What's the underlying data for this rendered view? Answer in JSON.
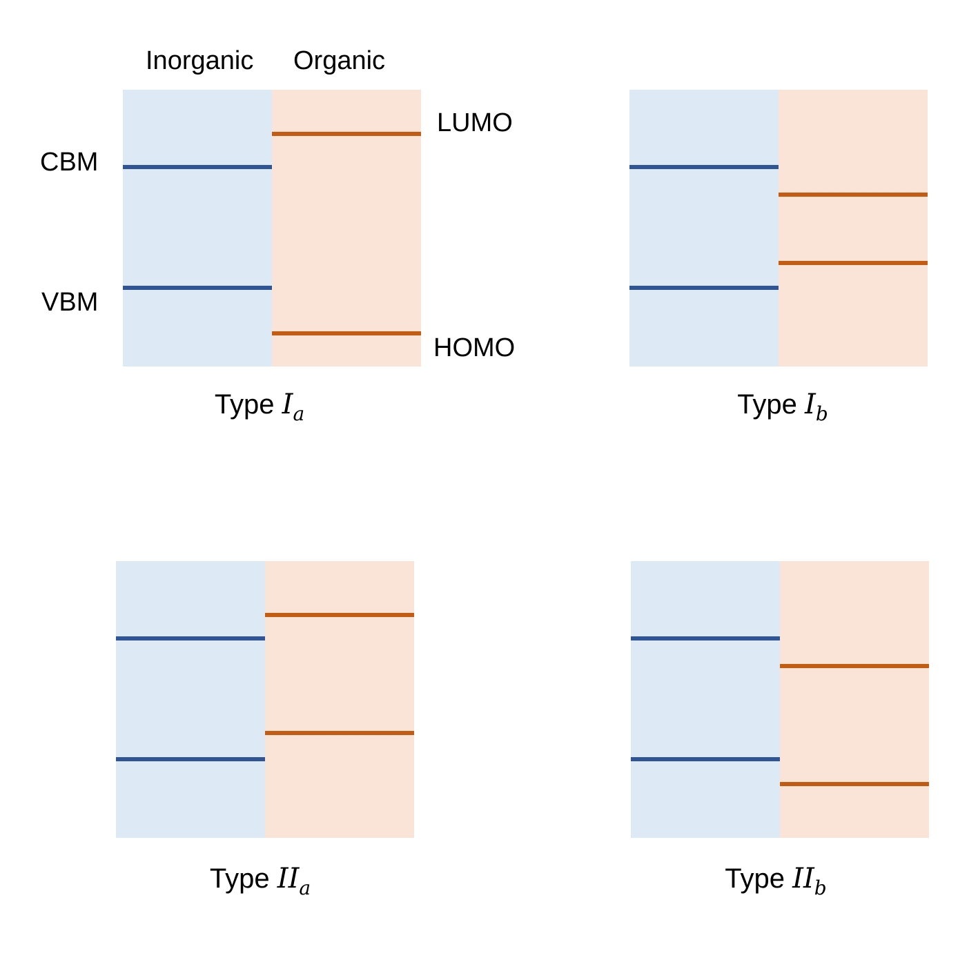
{
  "colors": {
    "inorganic_fill": "#dee9f6",
    "organic_fill": "#fae4d8",
    "inorganic_level": "#2f5597",
    "organic_level": "#c55a11",
    "text": "#000000"
  },
  "labels": {
    "inorganic": "Inorganic",
    "organic": "Organic",
    "cbm": "CBM",
    "vbm": "VBM",
    "lumo": "LUMO",
    "homo": "HOMO"
  },
  "panels": [
    {
      "id": "type-ia",
      "caption_prefix": "Type",
      "caption_symbol": "I",
      "caption_sub": "a",
      "inorganic_cbm": 0.28,
      "inorganic_vbm": 0.715,
      "organic_lumo": 0.16,
      "organic_homo": 0.88
    },
    {
      "id": "type-ib",
      "caption_prefix": "Type",
      "caption_symbol": "I",
      "caption_sub": "b",
      "inorganic_cbm": 0.28,
      "inorganic_vbm": 0.715,
      "organic_lumo": 0.378,
      "organic_homo": 0.625
    },
    {
      "id": "type-iia",
      "caption_prefix": "Type",
      "caption_symbol": "II",
      "caption_sub": "a",
      "inorganic_cbm": 0.28,
      "inorganic_vbm": 0.715,
      "organic_lumo": 0.195,
      "organic_homo": 0.622
    },
    {
      "id": "type-iib",
      "caption_prefix": "Type",
      "caption_symbol": "II",
      "caption_sub": "b",
      "inorganic_cbm": 0.28,
      "inorganic_vbm": 0.715,
      "organic_lumo": 0.378,
      "organic_homo": 0.805
    }
  ]
}
